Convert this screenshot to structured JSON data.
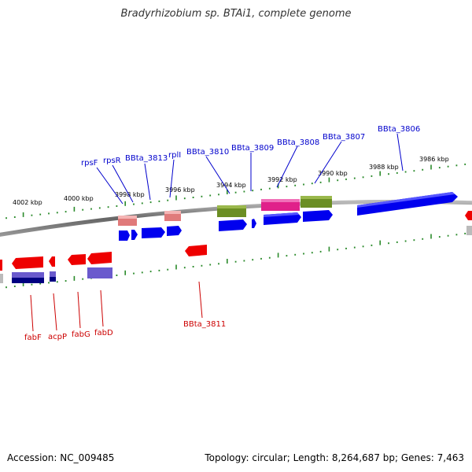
{
  "title": "Bradyrhizobium sp. BTAi1, complete genome",
  "accession": "Accession: NC_009485",
  "topology": "Topology: circular; Length: 8,264,687 bp; Genes: 7,463",
  "colors": {
    "backbone": "#888888",
    "ticks": "#2a8a2a",
    "top_labels": "#0000cc",
    "bottom_labels": "#cc0000",
    "forward_gene": "#0000ee",
    "reverse_gene": "#ee0000",
    "cog_olive": "#6b8e23",
    "cog_magenta": "#e0208a",
    "cog_pink": "#e07a7a",
    "cog_purple": "#6a5acd",
    "cog_navy": "#000080",
    "cog_gray": "#bbbbbb"
  },
  "kbp_labels": [
    "4002 kbp",
    "4000 kbp",
    "3998 kbp",
    "3996 kbp",
    "3994 kbp",
    "3992 kbp",
    "3990 kbp",
    "3988 kbp",
    "3986 kbp"
  ],
  "top_gene_labels": [
    "rpsF",
    "rpsR",
    "BBta_3813",
    "rplI",
    "BBta_3810",
    "BBta_3809",
    "BBta_3808",
    "BBta_3807",
    "BBta_3806"
  ],
  "bottom_gene_labels": [
    "fabF",
    "acpP",
    "fabG",
    "fabD",
    "BBta_3811"
  ]
}
